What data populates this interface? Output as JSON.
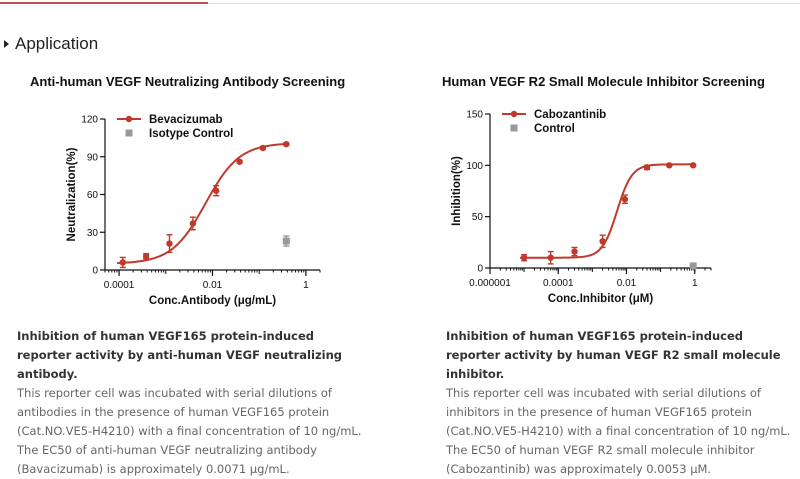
{
  "section": {
    "title": "Application"
  },
  "panels": [
    {
      "title": "Anti-human VEGF Neutralizing Antibody Screening",
      "description_bold": "Inhibition of human VEGF165 protein-induced reporter activity by anti-human VEGF neutralizing antibody.",
      "description_lines": [
        "This reporter cell was incubated with serial dilutions of",
        "antibodies in the presence of human VEGF165 protein",
        "(Cat.NO.VE5-H4210) with a final concentration of 10 ng/mL.",
        "The EC50 of anti-human VEGF neutralizing antibody",
        "(Bavacizumab) is approximately 0.0071 μg/mL."
      ]
    },
    {
      "title": "Human VEGF R2 Small Molecule Inhibitor Screening",
      "description_bold": "Inhibition of human VEGF165 protein-induced reporter activity by human VEGF R2 small molecule inhibitor.",
      "description_lines": [
        "This reporter cell was incubated with serial dilutions of",
        "inhibitors in the presence of human VEGF165 protein",
        "(Cat.NO.VE5-H4210) with a final concentration of 10 ng/mL.",
        "The EC50 of human VEGF R2 small molecule inhibitor",
        "(Cabozantinib) was approximately 0.0053 μM."
      ]
    }
  ],
  "chart_data": [
    {
      "type": "scatter",
      "xlabel": "Conc.Antibody (μg/mL)",
      "ylabel": "Neutralization(%)",
      "xscale": "log",
      "xlim": [
        5e-05,
        2
      ],
      "ylim": [
        0,
        120
      ],
      "xticks": [
        0.0001,
        0.01,
        1
      ],
      "xtick_labels": [
        "0.0001",
        "0.01",
        "1"
      ],
      "yticks": [
        0,
        30,
        60,
        90,
        120
      ],
      "ytick_labels": [
        "0",
        "30",
        "60",
        "90",
        "120"
      ],
      "legend_position": "top-left",
      "grid": false,
      "series": [
        {
          "name": "Bevacizumab",
          "color": "#c0392b",
          "marker": "circle",
          "fit": "sigmoid",
          "ec50": 0.0071,
          "bottom": 5,
          "top": 101,
          "hill": 1.2,
          "x": [
            0.00012,
            0.00038,
            0.0012,
            0.0038,
            0.012,
            0.038,
            0.12,
            0.38
          ],
          "y": [
            6,
            11,
            21,
            37,
            63,
            86,
            97,
            100
          ],
          "err": [
            4,
            2,
            7,
            5,
            4,
            1,
            1,
            1
          ]
        },
        {
          "name": "Isotype Control",
          "color": "#999999",
          "marker": "square",
          "x": [
            0.38
          ],
          "y": [
            23
          ],
          "err": [
            4
          ]
        }
      ]
    },
    {
      "type": "scatter",
      "xlabel": "Conc.Inhibitor (μM)",
      "ylabel": "Inhibition(%)",
      "xscale": "log",
      "xlim": [
        1e-06,
        3
      ],
      "ylim": [
        0,
        150
      ],
      "xticks": [
        1e-06,
        0.0001,
        0.01,
        1
      ],
      "xtick_labels": [
        "0.000001",
        "0.0001",
        "0.01",
        "1"
      ],
      "yticks": [
        0,
        50,
        100,
        150
      ],
      "ytick_labels": [
        "0",
        "50",
        "100",
        "150"
      ],
      "legend_position": "top-left",
      "grid": false,
      "series": [
        {
          "name": "Cabozantinib",
          "color": "#c0392b",
          "marker": "circle",
          "fit": "sigmoid",
          "ec50": 0.0053,
          "bottom": 10,
          "top": 101,
          "hill": 2,
          "x": [
            1e-05,
            6e-05,
            0.0003,
            0.002,
            0.009,
            0.04,
            0.18,
            0.9
          ],
          "y": [
            10,
            10,
            16,
            26,
            67,
            98,
            100,
            100
          ],
          "err": [
            3,
            6,
            4,
            6,
            4,
            2,
            1,
            1
          ]
        },
        {
          "name": "Control",
          "color": "#999999",
          "marker": "square",
          "x": [
            0.9
          ],
          "y": [
            2
          ],
          "err": [
            1
          ]
        }
      ]
    }
  ]
}
